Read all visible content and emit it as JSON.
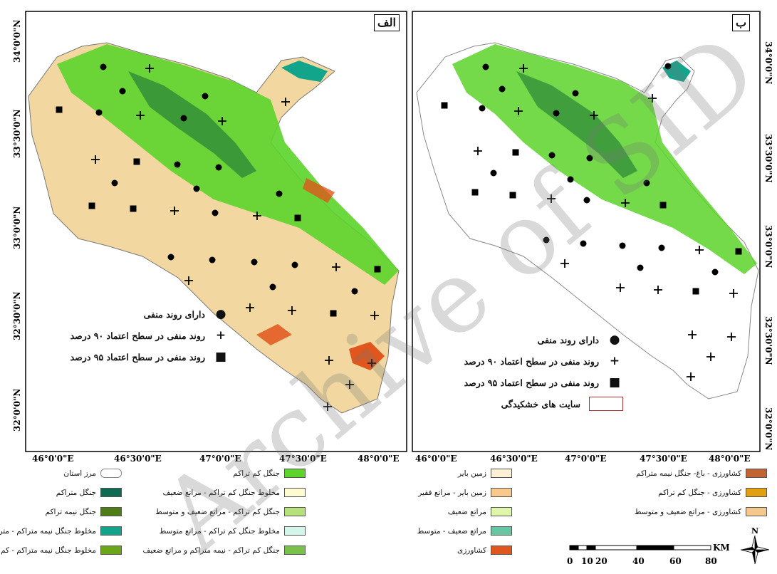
{
  "panels": {
    "left": {
      "tag": "الف",
      "legend": [
        {
          "symbol": "circle",
          "label": "دارای روند منفی"
        },
        {
          "symbol": "plus",
          "label": "روند منفی در سطح اعتماد ۹۰ درصد"
        },
        {
          "symbol": "square",
          "label": "روند منفی در سطح اعتماد ۹۵ درصد"
        }
      ]
    },
    "right": {
      "tag": "ب",
      "legend": [
        {
          "symbol": "circle",
          "label": "دارای روند منفی"
        },
        {
          "symbol": "plus",
          "label": "روند منفی در سطح اعتماد ۹۰ درصد"
        },
        {
          "symbol": "square",
          "label": "روند منفی در سطح اعتماد ۹۵ درصد"
        },
        {
          "symbol": "rect-outline",
          "label": "سایت های خشکیدگی"
        }
      ]
    }
  },
  "axes": {
    "x_ticks": [
      "46°0'0\"E",
      "46°30'0\"E",
      "47°0'0\"E",
      "47°30'0\"E",
      "48°0'0\"E"
    ],
    "y_ticks": [
      "34°0'0\"N",
      "33°30'0\"N",
      "33°0'0\"N",
      "32°30'0\"N",
      "32°0'0\"N"
    ]
  },
  "landcover_legend": {
    "col1": [
      {
        "label": "مرز استان",
        "color": "#ffffff",
        "kind": "outline"
      },
      {
        "label": "جنگل متراکم",
        "color": "#0e6a52"
      },
      {
        "label": "جنگل نیمه تراکم",
        "color": "#4e7d17"
      },
      {
        "label": "مخلوط جنگل نیمه متراکم - متراکم",
        "color": "#13a58c"
      },
      {
        "label": "مخلوط جنگل نیمه متراکم - کم تراکم",
        "color": "#6aa617"
      }
    ],
    "col2": [
      {
        "label": "جنگل کم تراکم",
        "color": "#5cd42a"
      },
      {
        "label": "مخلوط جنگل کم تراکم - مراتع ضعیف",
        "color": "#fdfbcf"
      },
      {
        "label": "جنگل کم تراکم - مراتع ضعیف و متوسط",
        "color": "#b6e07a"
      },
      {
        "label": "مخلوط جنگل کم تراکم - مراتع متوسط",
        "color": "#d2f6ea"
      },
      {
        "label": "جنگل کم تراکم - نیمه متراکم و مراتع ضعیف",
        "color": "#78c24a"
      }
    ],
    "col3": [
      {
        "label": "زمین بایر",
        "color": "#fdf0d4"
      },
      {
        "label": "زمین بایر - مراتع فقیر",
        "color": "#f8c98c"
      },
      {
        "label": "مراتع ضعیف",
        "color": "#def7a8"
      },
      {
        "label": "مراتع ضعیف - متوسط",
        "color": "#67c7a4"
      },
      {
        "label": "کشاورزی",
        "color": "#e0561c"
      }
    ],
    "col4": [
      {
        "label": "کشاورزی - باغ- جنگل نیمه متراکم",
        "color": "#c26332"
      },
      {
        "label": "کشاورزی - جنگل کم تراکم",
        "color": "#e0a012"
      },
      {
        "label": "کشاورزی - مراتع ضعیف و متوسط",
        "color": "#f4c78c"
      }
    ]
  },
  "scale_bar": {
    "unit": "KM",
    "labels": [
      "0",
      "10",
      "20",
      "40",
      "60",
      "80"
    ]
  },
  "north_arrow": {
    "letter": "N"
  },
  "watermark": "Archive of SID"
}
